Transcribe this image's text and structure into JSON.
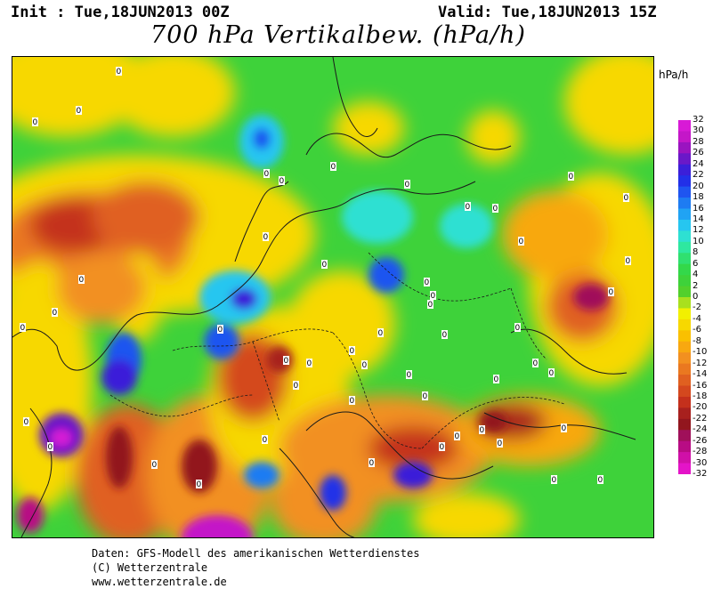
{
  "header": {
    "init": "Init : Tue,18JUN2013 00Z",
    "valid": "Valid: Tue,18JUN2013 15Z",
    "title": "700 hPa Vertikalbew. (hPa/h)"
  },
  "legend": {
    "unit": "hPa/h",
    "ticks": [
      "32",
      "30",
      "28",
      "26",
      "24",
      "22",
      "20",
      "18",
      "16",
      "14",
      "12",
      "10",
      "8",
      "6",
      "4",
      "2",
      "0",
      "-2",
      "-4",
      "-6",
      "-8",
      "-10",
      "-12",
      "-14",
      "-16",
      "-18",
      "-20",
      "-22",
      "-24",
      "-26",
      "-28",
      "-30",
      "-32"
    ],
    "colors": [
      "#d81ad6",
      "#c417c8",
      "#9a14c0",
      "#6a18c8",
      "#3b1fd9",
      "#2230e8",
      "#1f55f0",
      "#1e7cf2",
      "#20a3f4",
      "#26c6f0",
      "#2ee0d2",
      "#2ee8a0",
      "#30e070",
      "#33d84a",
      "#3ed23a",
      "#52d02c",
      "#a9e01e",
      "#f2f000",
      "#f7d800",
      "#fac000",
      "#f8a810",
      "#f29020",
      "#ea7820",
      "#e06020",
      "#d4481e",
      "#c4301c",
      "#a8201e",
      "#92161e",
      "#a0105a",
      "#b80c84",
      "#d010a8",
      "#e414c8"
    ]
  },
  "map": {
    "contour_label": "0",
    "label_count": 56
  },
  "credits": {
    "line1": "Daten: GFS-Modell des amerikanischen Wetterdienstes",
    "line2": "(C) Wetterzentrale",
    "line3": "www.wetterzentrale.de"
  }
}
